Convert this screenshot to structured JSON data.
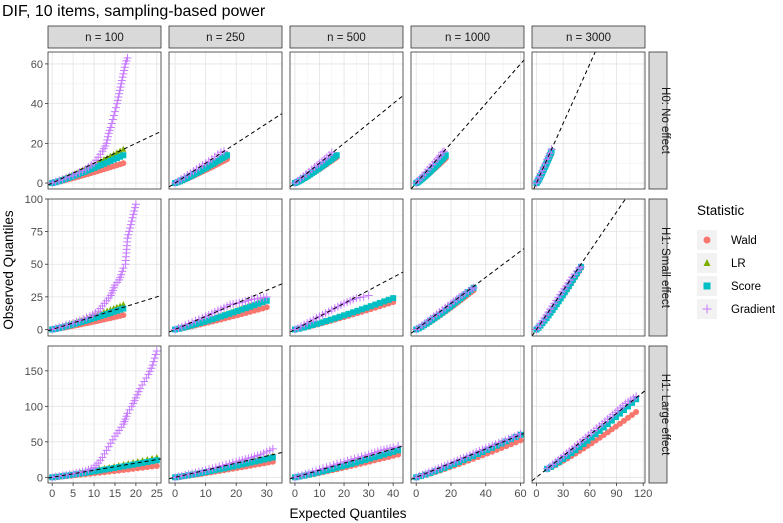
{
  "chart_data": {
    "type": "scatter",
    "subtype": "qq-plot",
    "title": "DIF, 10 items, sampling-based power",
    "xlabel": "Expected Quantiles",
    "ylabel": "Observed Quantiles",
    "col_facets": [
      "n = 100",
      "n = 250",
      "n = 500",
      "n = 1000",
      "n = 3000"
    ],
    "row_facets": [
      "H0: No effect",
      "H1: Small effect",
      "H1: Large effect"
    ],
    "legend": {
      "title": "Statistic",
      "position": "right",
      "entries": [
        {
          "name": "Wald",
          "color": "#F8766D",
          "shape": "circle"
        },
        {
          "name": "LR",
          "color": "#7CAE00",
          "shape": "triangle"
        },
        {
          "name": "Score",
          "color": "#00BFC4",
          "shape": "square"
        },
        {
          "name": "Gradient",
          "color": "#C77CFF",
          "shape": "plus"
        }
      ]
    },
    "reference_line": "y = x (dashed)",
    "x_ranges": [
      [
        -1,
        26
      ],
      [
        -2,
        35
      ],
      [
        -2,
        44
      ],
      [
        -3,
        62
      ],
      [
        -5,
        122
      ]
    ],
    "x_ticks": [
      [
        0,
        5,
        10,
        15,
        20,
        25
      ],
      [
        0,
        10,
        20,
        30
      ],
      [
        0,
        10,
        20,
        30,
        40
      ],
      [
        0,
        20,
        40,
        60
      ],
      [
        0,
        30,
        60,
        90,
        120
      ]
    ],
    "y_ranges": [
      [
        -3,
        66
      ],
      [
        -5,
        100
      ],
      [
        -8,
        185
      ]
    ],
    "y_ticks": [
      [
        0,
        20,
        40,
        60
      ],
      [
        0,
        25,
        50,
        75,
        100
      ],
      [
        0,
        50,
        100,
        150
      ]
    ],
    "grid": true,
    "panels": [
      [
        {
          "x_end": 17,
          "series": {
            "Wald": 10,
            "LR": 17,
            "Score": 14
          },
          "gradient": [
            [
              0,
              0
            ],
            [
              5,
              4
            ],
            [
              8,
              7
            ],
            [
              10,
              10
            ],
            [
              11,
              13
            ],
            [
              12,
              16
            ],
            [
              13,
              20
            ],
            [
              13.5,
              25
            ],
            [
              14,
              28
            ],
            [
              14.5,
              32
            ],
            [
              15,
              36
            ],
            [
              15.5,
              40
            ],
            [
              16,
              45
            ],
            [
              16.5,
              50
            ],
            [
              17,
              55
            ],
            [
              17.5,
              60
            ],
            [
              18,
              63
            ]
          ]
        },
        {
          "x_end": 17,
          "series": {
            "Wald": 12,
            "LR": 14.5,
            "Score": 14
          },
          "gradient": [
            [
              0,
              0
            ],
            [
              8,
              8
            ],
            [
              12,
              12
            ],
            [
              14,
              14.5
            ],
            [
              15,
              15.5
            ],
            [
              16,
              16
            ]
          ]
        },
        {
          "x_end": 17,
          "series": {
            "Wald": 13,
            "LR": 14,
            "Score": 14
          },
          "gradient": [
            [
              0,
              0
            ],
            [
              8,
              8
            ],
            [
              12,
              12
            ],
            [
              14,
              14
            ],
            [
              15,
              15.5
            ]
          ]
        },
        {
          "x_end": 17,
          "series": {
            "Wald": 12.5,
            "LR": 14,
            "Score": 14
          },
          "gradient": [
            [
              0,
              0
            ],
            [
              8,
              8
            ],
            [
              12,
              12
            ],
            [
              14,
              14
            ],
            [
              15,
              15.5
            ],
            [
              16,
              16
            ]
          ]
        },
        {
          "x_end": 17,
          "series": {
            "Wald": 15,
            "LR": 16,
            "Score": 16
          },
          "gradient": [
            [
              0,
              0
            ],
            [
              8,
              8
            ],
            [
              12,
              12
            ],
            [
              15,
              15
            ],
            [
              17,
              17
            ]
          ]
        }
      ],
      [
        {
          "x_end": 17,
          "series": {
            "Wald": 11,
            "LR": 19,
            "Score": 16
          },
          "gradient": [
            [
              0,
              0
            ],
            [
              5,
              5
            ],
            [
              9,
              10
            ],
            [
              11,
              14
            ],
            [
              12,
              18
            ],
            [
              13,
              22
            ],
            [
              14,
              26
            ],
            [
              14.5,
              30
            ],
            [
              15,
              34
            ],
            [
              16,
              38
            ],
            [
              16.5,
              42
            ],
            [
              17,
              47
            ],
            [
              17.5,
              50
            ],
            [
              18,
              70
            ],
            [
              20,
              96
            ]
          ]
        },
        {
          "x_end": 30,
          "series": {
            "Wald": 17,
            "LR": 23,
            "Score": 22
          },
          "gradient": [
            [
              0,
              0
            ],
            [
              10,
              10
            ],
            [
              18,
              19
            ],
            [
              22,
              21
            ],
            [
              25,
              23
            ],
            [
              28,
              24
            ],
            [
              30,
              25
            ]
          ]
        },
        {
          "x_end": 40,
          "series": {
            "Wald": 21,
            "LR": 24,
            "Score": 24
          },
          "gradient": [
            [
              0,
              0
            ],
            [
              10,
              10
            ],
            [
              20,
              20
            ],
            [
              25,
              24
            ],
            [
              28,
              25
            ],
            [
              30,
              26
            ]
          ]
        },
        {
          "x_end": 33,
          "series": {
            "Wald": 30,
            "LR": 32,
            "Score": 32
          },
          "gradient": [
            [
              0,
              0
            ],
            [
              10,
              10
            ],
            [
              20,
              20
            ],
            [
              28,
              28
            ],
            [
              32,
              31
            ],
            [
              33,
              32
            ]
          ]
        },
        {
          "x_end": 50,
          "series": {
            "Wald": 47,
            "LR": 48,
            "Score": 48
          },
          "gradient": [
            [
              0,
              0
            ],
            [
              20,
              20
            ],
            [
              40,
              40
            ],
            [
              48,
              47
            ],
            [
              50,
              48
            ]
          ]
        }
      ],
      [
        {
          "x_end": 25,
          "series": {
            "Wald": 16,
            "LR": 28,
            "Score": 24
          },
          "gradient": [
            [
              0,
              0
            ],
            [
              5,
              5
            ],
            [
              8,
              9
            ],
            [
              10,
              14
            ],
            [
              11,
              20
            ],
            [
              12,
              28
            ],
            [
              13,
              38
            ],
            [
              14,
              48
            ],
            [
              15,
              58
            ],
            [
              16,
              66
            ],
            [
              17,
              75
            ],
            [
              17.5,
              82
            ],
            [
              18,
              90
            ],
            [
              19,
              100
            ],
            [
              20,
              112
            ],
            [
              21,
              125
            ],
            [
              22,
              135
            ],
            [
              23,
              145
            ],
            [
              24,
              158
            ],
            [
              25,
              178
            ]
          ]
        },
        {
          "x_end": 32,
          "series": {
            "Wald": 22,
            "LR": 30,
            "Score": 28
          },
          "gradient": [
            [
              0,
              0
            ],
            [
              10,
              10
            ],
            [
              20,
              22
            ],
            [
              25,
              28
            ],
            [
              28,
              32
            ],
            [
              30,
              36
            ],
            [
              32,
              40
            ]
          ]
        },
        {
          "x_end": 42,
          "series": {
            "Wald": 32,
            "LR": 40,
            "Score": 38
          },
          "gradient": [
            [
              0,
              0
            ],
            [
              10,
              11
            ],
            [
              20,
              22
            ],
            [
              30,
              32
            ],
            [
              35,
              38
            ],
            [
              40,
              42
            ],
            [
              42,
              44
            ]
          ]
        },
        {
          "x_end": 60,
          "series": {
            "Wald": 52,
            "LR": 60,
            "Score": 60
          },
          "gradient": [
            [
              0,
              0
            ],
            [
              20,
              20
            ],
            [
              40,
              41
            ],
            [
              55,
              56
            ],
            [
              60,
              61
            ]
          ]
        },
        {
          "x_end": 112,
          "x_start": 12,
          "series": {
            "Wald": 92,
            "LR": 110,
            "Score": 110
          },
          "gradient": [
            [
              12,
              12
            ],
            [
              40,
              40
            ],
            [
              80,
              82
            ],
            [
              100,
              104
            ],
            [
              112,
              114
            ]
          ]
        }
      ]
    ]
  }
}
